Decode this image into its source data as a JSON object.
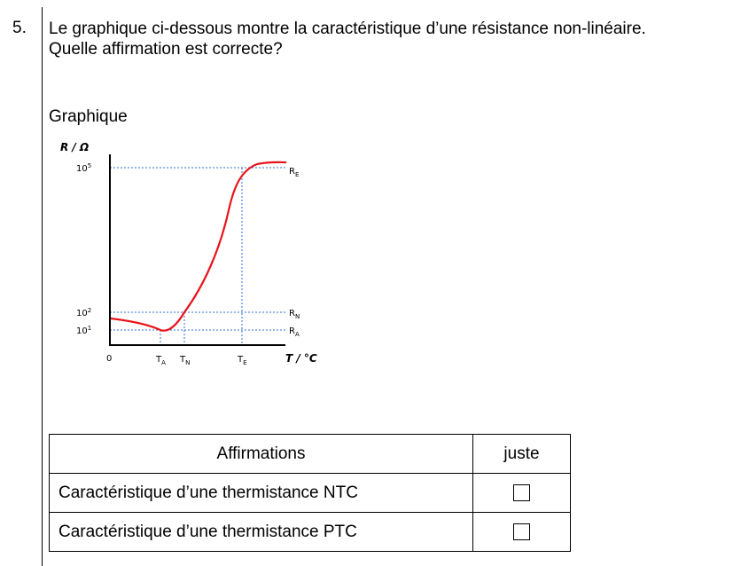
{
  "question": {
    "number": "5.",
    "line1": "Le graphique ci-dessous montre la caractéristique d’une résistance non-linéaire.",
    "line2": "Quelle affirmation est correcte?"
  },
  "graph_heading": "Graphique",
  "chart_data": {
    "type": "line",
    "ylabel": "R / Ω",
    "xlabel": "T / °C",
    "y_ticks": [
      {
        "base": "10",
        "exp": "5"
      },
      {
        "base": "10",
        "exp": "2"
      },
      {
        "base": "10",
        "exp": "1"
      }
    ],
    "x_ticks": [
      {
        "main": "0",
        "sub": ""
      },
      {
        "main": "T",
        "sub": "A"
      },
      {
        "main": "T",
        "sub": "N"
      },
      {
        "main": "T",
        "sub": "E"
      }
    ],
    "reference_labels": [
      {
        "main": "R",
        "sub": "E"
      },
      {
        "main": "R",
        "sub": "N"
      },
      {
        "main": "R",
        "sub": "A"
      }
    ],
    "curve_color": "#e8141a",
    "guide_color": "#2f6fd6",
    "grid": false
  },
  "table": {
    "header_statement": "Affirmations",
    "header_check": "juste",
    "rows": [
      {
        "statement": "Caractéristique d’une thermistance NTC"
      },
      {
        "statement": "Caractéristique d’une thermistance PTC"
      }
    ]
  }
}
